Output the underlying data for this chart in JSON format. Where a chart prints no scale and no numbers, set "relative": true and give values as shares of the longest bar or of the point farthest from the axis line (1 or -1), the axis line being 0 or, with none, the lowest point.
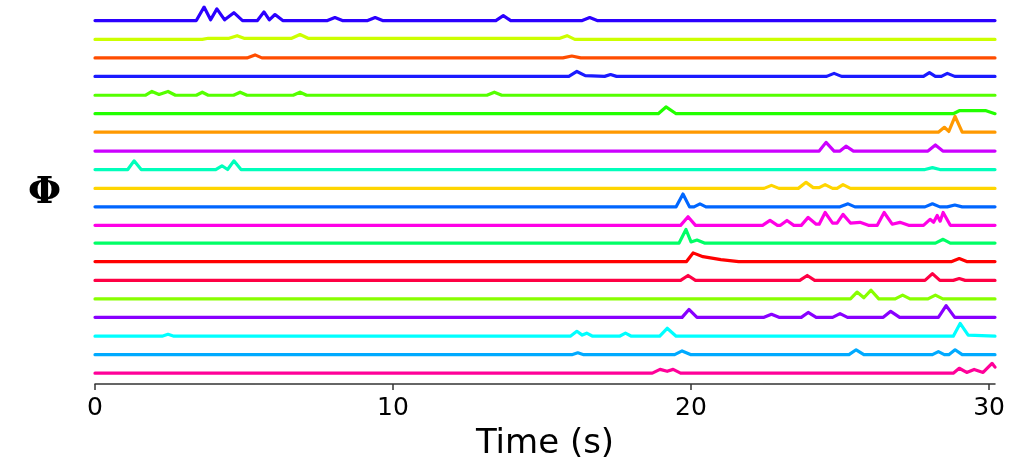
{
  "chart_data": {
    "type": "line",
    "relative": true,
    "xlabel": "Time (s)",
    "ylabel": "Φ",
    "xlim": [
      0,
      30.2
    ],
    "xticks": [
      0,
      10,
      20,
      30
    ],
    "marker": "none",
    "line_style": "solid",
    "tick_labels": "x",
    "series": [
      {
        "color": "#2b00ff",
        "x": [
          0,
          3.4,
          3.66,
          3.88,
          4.09,
          4.35,
          4.66,
          4.95,
          5.45,
          5.67,
          5.85,
          6.04,
          6.3,
          7.8,
          8.05,
          8.3,
          9.15,
          9.4,
          9.65,
          13.45,
          13.7,
          13.95,
          16.35,
          16.6,
          16.85,
          30.2
        ],
        "values": [
          0.964,
          0.964,
          1.0,
          0.966,
          0.995,
          0.966,
          0.985,
          0.964,
          0.964,
          0.987,
          0.966,
          0.98,
          0.964,
          0.964,
          0.972,
          0.964,
          0.964,
          0.972,
          0.964,
          0.964,
          0.977,
          0.964,
          0.964,
          0.972,
          0.964,
          0.964
        ]
      },
      {
        "color": "#ccff00",
        "x": [
          0,
          3.6,
          3.8,
          4.5,
          4.77,
          5.0,
          6.6,
          6.88,
          7.15,
          15.6,
          15.84,
          16.1,
          30.2
        ],
        "values": [
          0.914,
          0.914,
          0.917,
          0.917,
          0.924,
          0.917,
          0.917,
          0.927,
          0.917,
          0.917,
          0.924,
          0.914,
          0.914
        ]
      },
      {
        "color": "#ff4d00",
        "x": [
          0,
          5.1,
          5.37,
          5.6,
          15.7,
          16.0,
          16.3,
          30.2
        ],
        "values": [
          0.865,
          0.865,
          0.873,
          0.865,
          0.865,
          0.87,
          0.865,
          0.865
        ]
      },
      {
        "color": "#1a1aff",
        "x": [
          0,
          15.9,
          16.17,
          16.45,
          17.1,
          17.3,
          17.5,
          24.55,
          24.8,
          25.05,
          27.8,
          28.0,
          28.2,
          28.4,
          28.6,
          28.85,
          30.2
        ],
        "values": [
          0.816,
          0.816,
          0.829,
          0.818,
          0.816,
          0.821,
          0.816,
          0.816,
          0.824,
          0.816,
          0.816,
          0.826,
          0.816,
          0.816,
          0.824,
          0.816,
          0.816
        ]
      },
      {
        "color": "#55ff00",
        "x": [
          0,
          1.7,
          1.91,
          2.15,
          2.45,
          2.7,
          3.4,
          3.6,
          3.8,
          4.65,
          4.87,
          5.1,
          6.65,
          6.88,
          7.1,
          13.15,
          13.4,
          13.65,
          30.2
        ],
        "values": [
          0.766,
          0.766,
          0.776,
          0.768,
          0.776,
          0.766,
          0.766,
          0.774,
          0.766,
          0.766,
          0.774,
          0.766,
          0.766,
          0.774,
          0.766,
          0.766,
          0.774,
          0.766,
          0.766
        ]
      },
      {
        "color": "#22ff00",
        "x": [
          0,
          18.9,
          19.16,
          19.5,
          28.8,
          29.0,
          29.9,
          30.2
        ],
        "values": [
          0.717,
          0.717,
          0.735,
          0.717,
          0.717,
          0.725,
          0.725,
          0.717
        ]
      },
      {
        "color": "#ff9900",
        "x": [
          0,
          28.3,
          28.5,
          28.65,
          28.86,
          29.1,
          30.2
        ],
        "values": [
          0.668,
          0.668,
          0.681,
          0.67,
          0.71,
          0.668,
          0.668
        ]
      },
      {
        "color": "#cc00ff",
        "x": [
          0,
          24.3,
          24.53,
          24.8,
          25.0,
          25.2,
          25.45,
          27.95,
          28.2,
          28.45,
          30.2
        ],
        "values": [
          0.618,
          0.618,
          0.641,
          0.618,
          0.618,
          0.631,
          0.618,
          0.618,
          0.634,
          0.618,
          0.618
        ]
      },
      {
        "color": "#00ffbb",
        "x": [
          0,
          1.1,
          1.31,
          1.55,
          4.05,
          4.26,
          4.45,
          4.66,
          4.9,
          27.85,
          28.1,
          28.35,
          30.2
        ],
        "values": [
          0.569,
          0.569,
          0.592,
          0.569,
          0.569,
          0.579,
          0.569,
          0.592,
          0.569,
          0.569,
          0.574,
          0.569,
          0.569
        ]
      },
      {
        "color": "#ffd500",
        "x": [
          0,
          22.45,
          22.7,
          22.95,
          23.6,
          23.86,
          24.1,
          24.3,
          24.5,
          24.75,
          24.9,
          25.1,
          25.35,
          30.2
        ],
        "values": [
          0.519,
          0.519,
          0.527,
          0.519,
          0.519,
          0.535,
          0.521,
          0.521,
          0.529,
          0.519,
          0.519,
          0.529,
          0.519,
          0.519
        ]
      },
      {
        "color": "#0066ff",
        "x": [
          0,
          19.5,
          19.73,
          19.95,
          20.1,
          20.3,
          20.5,
          25.0,
          25.27,
          25.5,
          27.85,
          28.1,
          28.35,
          28.6,
          28.85,
          29.1,
          30.2
        ],
        "values": [
          0.47,
          0.47,
          0.504,
          0.47,
          0.47,
          0.478,
          0.47,
          0.47,
          0.478,
          0.47,
          0.47,
          0.478,
          0.47,
          0.47,
          0.475,
          0.47,
          0.47
        ]
      },
      {
        "color": "#ff00e6",
        "x": [
          0,
          19.65,
          19.9,
          20.15,
          22.4,
          22.65,
          22.9,
          23.0,
          23.22,
          23.45,
          23.7,
          23.93,
          24.2,
          24.3,
          24.5,
          24.75,
          24.9,
          25.1,
          25.35,
          25.67,
          25.95,
          26.25,
          26.48,
          26.75,
          27.01,
          27.3,
          27.8,
          28.02,
          28.14,
          28.26,
          28.36,
          28.46,
          28.7,
          30.2
        ],
        "values": [
          0.421,
          0.421,
          0.444,
          0.421,
          0.421,
          0.434,
          0.421,
          0.421,
          0.434,
          0.421,
          0.421,
          0.442,
          0.424,
          0.424,
          0.455,
          0.427,
          0.427,
          0.45,
          0.427,
          0.429,
          0.421,
          0.421,
          0.455,
          0.424,
          0.429,
          0.421,
          0.421,
          0.437,
          0.429,
          0.447,
          0.432,
          0.455,
          0.421,
          0.421
        ]
      },
      {
        "color": "#00ff66",
        "x": [
          0,
          19.6,
          19.83,
          20.0,
          20.2,
          20.45,
          28.2,
          28.46,
          28.7,
          30.2
        ],
        "values": [
          0.374,
          0.374,
          0.41,
          0.377,
          0.382,
          0.374,
          0.374,
          0.384,
          0.374,
          0.374
        ]
      },
      {
        "color": "#ff0000",
        "x": [
          0,
          19.85,
          20.07,
          20.4,
          21.0,
          21.6,
          28.75,
          29.0,
          29.25,
          30.2
        ],
        "values": [
          0.325,
          0.325,
          0.348,
          0.338,
          0.33,
          0.325,
          0.325,
          0.333,
          0.325,
          0.325
        ]
      },
      {
        "color": "#ff0044",
        "x": [
          0,
          19.65,
          19.9,
          20.15,
          23.65,
          23.9,
          24.15,
          27.85,
          28.1,
          28.35,
          28.8,
          29.0,
          29.2,
          30.2
        ],
        "values": [
          0.275,
          0.275,
          0.288,
          0.275,
          0.275,
          0.288,
          0.275,
          0.275,
          0.293,
          0.275,
          0.275,
          0.28,
          0.275,
          0.275
        ]
      },
      {
        "color": "#88ff00",
        "x": [
          0,
          25.35,
          25.57,
          25.8,
          26.04,
          26.3,
          26.85,
          27.1,
          27.35,
          27.95,
          28.2,
          28.45,
          30.2
        ],
        "values": [
          0.226,
          0.226,
          0.244,
          0.229,
          0.249,
          0.226,
          0.226,
          0.236,
          0.226,
          0.226,
          0.236,
          0.226,
          0.226
        ]
      },
      {
        "color": "#8800ff",
        "x": [
          0,
          19.7,
          19.93,
          20.2,
          22.45,
          22.7,
          22.95,
          23.7,
          23.93,
          24.2,
          24.75,
          25.0,
          25.25,
          26.45,
          26.7,
          27.0,
          28.3,
          28.56,
          28.85,
          30.2
        ],
        "values": [
          0.177,
          0.177,
          0.198,
          0.177,
          0.177,
          0.185,
          0.177,
          0.177,
          0.19,
          0.177,
          0.177,
          0.187,
          0.177,
          0.177,
          0.193,
          0.177,
          0.177,
          0.208,
          0.177,
          0.177
        ]
      },
      {
        "color": "#00ffff",
        "x": [
          0,
          2.25,
          2.45,
          2.65,
          15.95,
          16.17,
          16.35,
          16.5,
          16.7,
          17.6,
          17.8,
          18.0,
          18.95,
          19.2,
          19.5,
          28.8,
          29.03,
          29.3,
          30.2
        ],
        "values": [
          0.127,
          0.127,
          0.132,
          0.127,
          0.127,
          0.14,
          0.13,
          0.135,
          0.127,
          0.127,
          0.135,
          0.127,
          0.127,
          0.148,
          0.127,
          0.127,
          0.161,
          0.13,
          0.127
        ]
      },
      {
        "color": "#00aaff",
        "x": [
          0,
          16.0,
          16.2,
          16.4,
          19.45,
          19.7,
          20.0,
          25.3,
          25.54,
          25.8,
          28.1,
          28.3,
          28.5,
          28.65,
          28.86,
          29.1,
          30.2
        ],
        "values": [
          0.078,
          0.078,
          0.083,
          0.078,
          0.078,
          0.088,
          0.078,
          0.078,
          0.091,
          0.078,
          0.078,
          0.086,
          0.078,
          0.078,
          0.091,
          0.078,
          0.078
        ]
      },
      {
        "color": "#ff0099",
        "x": [
          0,
          18.7,
          18.96,
          19.2,
          19.4,
          19.65,
          28.8,
          29.0,
          29.25,
          29.5,
          29.8,
          30.1,
          30.2
        ],
        "values": [
          0.029,
          0.029,
          0.039,
          0.034,
          0.039,
          0.029,
          0.029,
          0.042,
          0.031,
          0.039,
          0.031,
          0.055,
          0.045
        ]
      }
    ]
  }
}
